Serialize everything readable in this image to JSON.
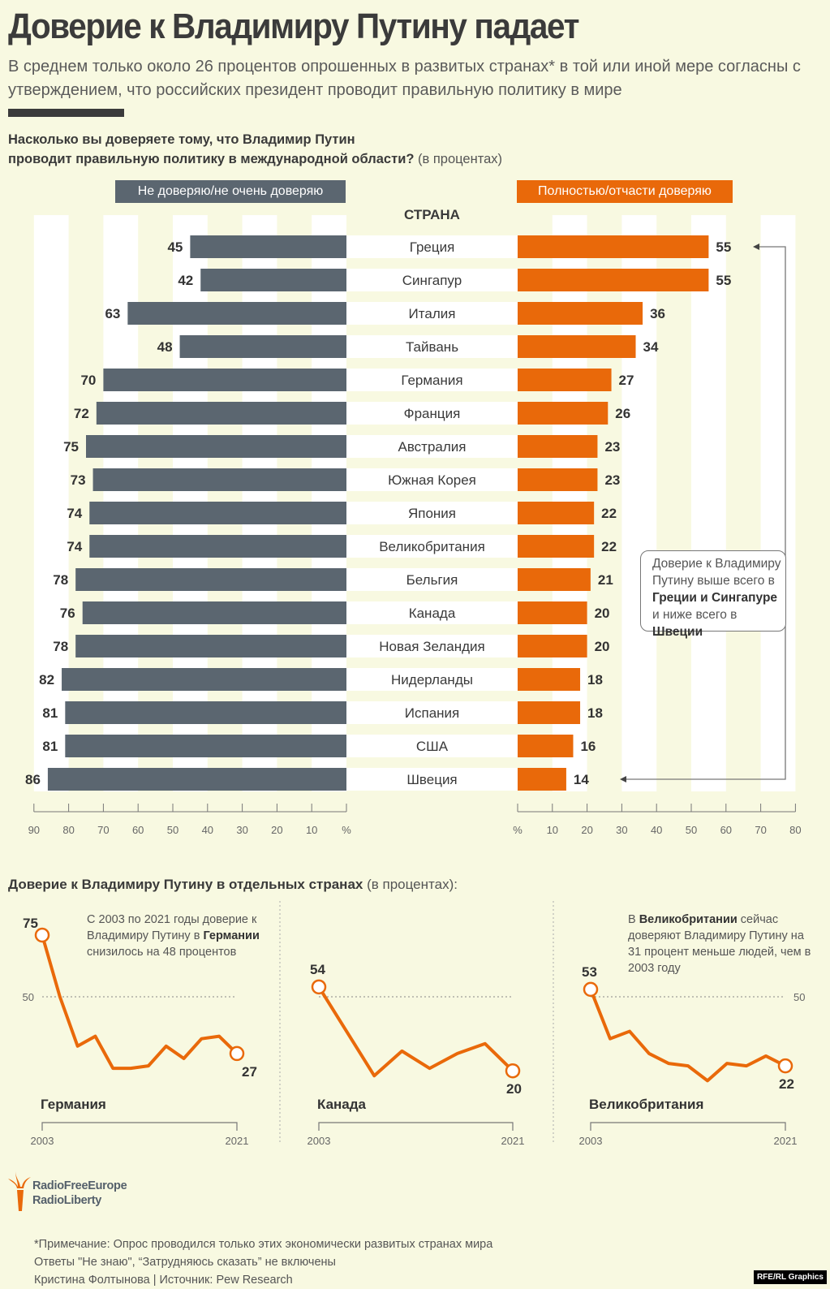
{
  "header": {
    "title": "Доверие к Владимиру Путину падает",
    "subtitle": "В среднем только около 26 процентов опрошенных в развитых странах* в той или иной мере согласны с утверждением, что российских президент проводит правильную политику в мире"
  },
  "question": {
    "line1": "Насколько вы доверяете тому, что Владимир Путин",
    "line2": "проводит правильную политику в международной области?",
    "unit": "(в процентах)"
  },
  "colors": {
    "distrust": "#5b6670",
    "trust": "#e9690a",
    "background": "#f8f9e1"
  },
  "legend": {
    "left": "Не доверяю/не очень доверяю",
    "right": "Полностью/отчасти доверяю",
    "center_header": "СТРАНА"
  },
  "callout": {
    "text_1": "Доверие к Владимиру Путину выше всего в",
    "bold_1": "Греции и Сингапуре",
    "text_2": "и ниже всего в",
    "bold_2": "Швеции"
  },
  "chart_data": [
    {
      "type": "bar",
      "title": "Насколько вы доверяете тому, что Владимир Путин проводит правильную политику в международной области? (в процентах)",
      "orientation": "horizontal-diverging",
      "categories": [
        "Греция",
        "Сингапур",
        "Италия",
        "Тайвань",
        "Германия",
        "Франция",
        "Австралия",
        "Южная Корея",
        "Япония",
        "Великобритания",
        "Бельгия",
        "Канада",
        "Новая Зеландия",
        "Нидерланды",
        "Испания",
        "США",
        "Швеция"
      ],
      "series": [
        {
          "name": "Не доверяю/не очень доверяю",
          "values": [
            45,
            42,
            63,
            48,
            70,
            72,
            75,
            73,
            74,
            74,
            78,
            76,
            78,
            82,
            81,
            81,
            86
          ]
        },
        {
          "name": "Полностью/отчасти доверяю",
          "values": [
            55,
            55,
            36,
            34,
            27,
            26,
            23,
            23,
            22,
            22,
            21,
            20,
            20,
            18,
            18,
            16,
            14
          ]
        }
      ],
      "left_axis": {
        "range": [
          90,
          0
        ],
        "ticks": [
          "90",
          "80",
          "70",
          "60",
          "50",
          "40",
          "30",
          "20",
          "10",
          "%"
        ]
      },
      "right_axis": {
        "range": [
          0,
          80
        ],
        "ticks": [
          "%",
          "10",
          "20",
          "30",
          "40",
          "50",
          "60",
          "70",
          "80"
        ]
      },
      "grid": "alternating vertical stripes",
      "legend": "top"
    },
    {
      "type": "line",
      "title": "Германия",
      "x_range": [
        "2003",
        "2021"
      ],
      "values": [
        75,
        50,
        30,
        34,
        21,
        21,
        22,
        30,
        25,
        33,
        34,
        27
      ],
      "start_label": "75",
      "end_label": "27",
      "reference_line": 50,
      "reference_label": "50"
    },
    {
      "type": "line",
      "title": "Канада",
      "x_range": [
        "2003",
        "2021"
      ],
      "values": [
        54,
        36,
        18,
        28,
        21,
        27,
        31,
        20
      ],
      "start_label": "54",
      "end_label": "20",
      "reference_line": 50
    },
    {
      "type": "line",
      "title": "Великобритания",
      "x_range": [
        "2003",
        "2021"
      ],
      "values": [
        53,
        33,
        36,
        27,
        23,
        22,
        16,
        23,
        22,
        26,
        22
      ],
      "start_label": "53",
      "end_label": "22",
      "reference_line": 50,
      "reference_label": "50"
    }
  ],
  "section2": {
    "title": "Доверие к Владимиру Путину в отдельных странах",
    "unit": "(в процентах):",
    "annot_de_1": "С 2003 по 2021 годы доверие к Владимиру Путину в",
    "annot_de_bold": "Германии",
    "annot_de_2": "снизилось на 48 процентов",
    "annot_uk_1": "В",
    "annot_uk_bold": "Великобритании",
    "annot_uk_2": "сейчас доверяют Владимиру Путину на 31 процент меньше людей, чем в 2003 году"
  },
  "footer": {
    "logo_line1": "RadioFreeEurope",
    "logo_line2": "RadioLiberty",
    "note1": "*Примечание: Опрос проводился только этих экономически развитых странах мира",
    "note2": "Ответы \"Не знаю\", “Затрудняюсь сказать”  не включены",
    "note3": "Кристина Фолтынова | Источник: Pew Research",
    "credit": "RFE/RL Graphics"
  }
}
